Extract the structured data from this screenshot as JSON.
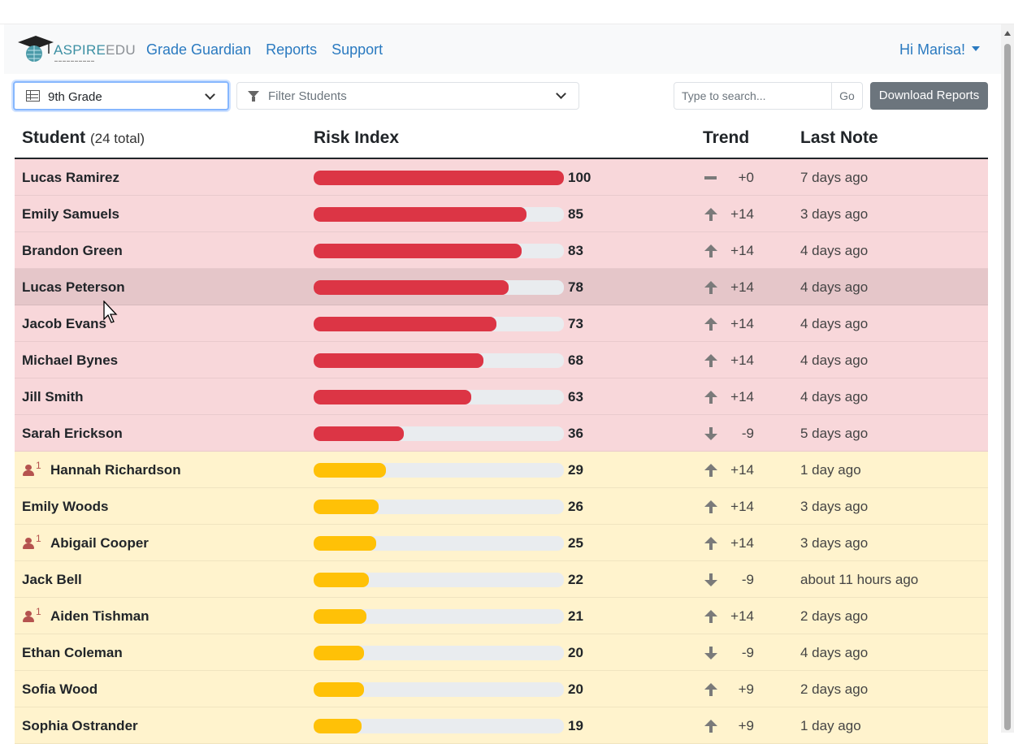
{
  "brand": {
    "name_part1": "ASPIRE",
    "name_part2": "EDU"
  },
  "nav": {
    "links": [
      "Grade Guardian",
      "Reports",
      "Support"
    ],
    "user_greeting": "Hi Marisa!"
  },
  "filters": {
    "grade_selected": "9th Grade",
    "filter_placeholder": "Filter Students",
    "search_placeholder": "Type to search...",
    "go_label": "Go",
    "download_label": "Download Reports"
  },
  "table": {
    "headers": {
      "student": "Student",
      "student_count": "(24 total)",
      "risk": "Risk Index",
      "trend": "Trend",
      "note": "Last Note"
    },
    "rows": [
      {
        "name": "Lucas Ramirez",
        "risk": 100,
        "level": "red",
        "trend": "flat",
        "trend_val": "+0",
        "note": "7 days ago",
        "alerts": null
      },
      {
        "name": "Emily Samuels",
        "risk": 85,
        "level": "red",
        "trend": "up",
        "trend_val": "+14",
        "note": "3 days ago",
        "alerts": null
      },
      {
        "name": "Brandon Green",
        "risk": 83,
        "level": "red",
        "trend": "up",
        "trend_val": "+14",
        "note": "4 days ago",
        "alerts": null
      },
      {
        "name": "Lucas Peterson",
        "risk": 78,
        "level": "red",
        "trend": "up",
        "trend_val": "+14",
        "note": "4 days ago",
        "alerts": null,
        "hover": true
      },
      {
        "name": "Jacob Evans",
        "risk": 73,
        "level": "red",
        "trend": "up",
        "trend_val": "+14",
        "note": "4 days ago",
        "alerts": null
      },
      {
        "name": "Michael Bynes",
        "risk": 68,
        "level": "red",
        "trend": "up",
        "trend_val": "+14",
        "note": "4 days ago",
        "alerts": null
      },
      {
        "name": "Jill Smith",
        "risk": 63,
        "level": "red",
        "trend": "up",
        "trend_val": "+14",
        "note": "4 days ago",
        "alerts": null
      },
      {
        "name": "Sarah Erickson",
        "risk": 36,
        "level": "red",
        "trend": "down",
        "trend_val": "-9",
        "note": "5 days ago",
        "alerts": null
      },
      {
        "name": "Hannah Richardson",
        "risk": 29,
        "level": "yellow",
        "trend": "up",
        "trend_val": "+14",
        "note": "1 day ago",
        "alerts": "1"
      },
      {
        "name": "Emily Woods",
        "risk": 26,
        "level": "yellow",
        "trend": "up",
        "trend_val": "+14",
        "note": "3 days ago",
        "alerts": null
      },
      {
        "name": "Abigail Cooper",
        "risk": 25,
        "level": "yellow",
        "trend": "up",
        "trend_val": "+14",
        "note": "3 days ago",
        "alerts": "1"
      },
      {
        "name": "Jack Bell",
        "risk": 22,
        "level": "yellow",
        "trend": "down",
        "trend_val": "-9",
        "note": "about 11 hours ago",
        "alerts": null
      },
      {
        "name": "Aiden Tishman",
        "risk": 21,
        "level": "yellow",
        "trend": "up",
        "trend_val": "+14",
        "note": "2 days ago",
        "alerts": "1"
      },
      {
        "name": "Ethan Coleman",
        "risk": 20,
        "level": "yellow",
        "trend": "down",
        "trend_val": "-9",
        "note": "4 days ago",
        "alerts": null
      },
      {
        "name": "Sofia Wood",
        "risk": 20,
        "level": "yellow",
        "trend": "up",
        "trend_val": "+9",
        "note": "2 days ago",
        "alerts": null
      },
      {
        "name": "Sophia Ostrander",
        "risk": 19,
        "level": "yellow",
        "trend": "up",
        "trend_val": "+9",
        "note": "1 day ago",
        "alerts": null
      }
    ]
  },
  "colors": {
    "high_risk": "#dc3545",
    "medium_risk": "#ffc107",
    "link": "#2a7ac0"
  }
}
